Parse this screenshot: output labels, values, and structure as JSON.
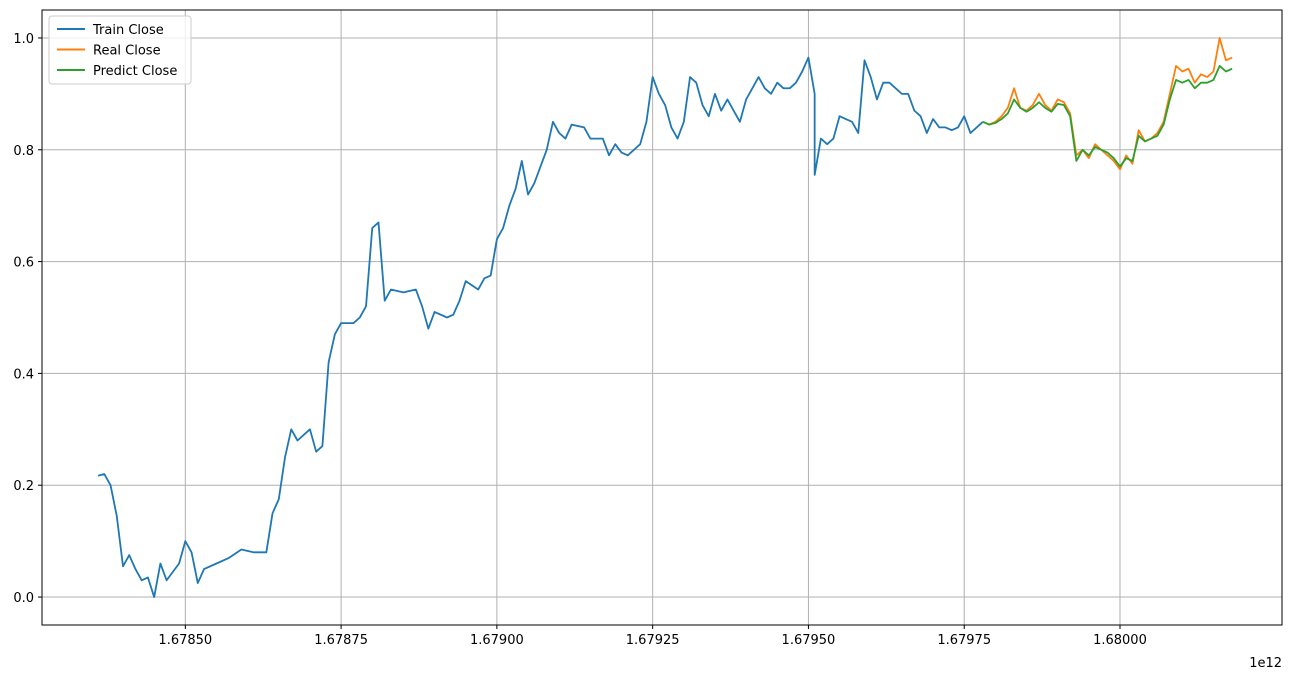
{
  "chart_data": {
    "type": "line",
    "title": "",
    "xlabel": "",
    "ylabel": "",
    "x_offset_label": "1e12",
    "xlim": [
      1.67827,
      1.68026
    ],
    "ylim": [
      -0.05,
      1.05
    ],
    "x_ticks": [
      1.6785,
      1.67875,
      1.679,
      1.67925,
      1.6795,
      1.67975,
      1.68
    ],
    "x_tick_labels": [
      "1.67850",
      "1.67875",
      "1.67900",
      "1.67925",
      "1.67950",
      "1.67975",
      "1.68000"
    ],
    "y_ticks": [
      0.0,
      0.2,
      0.4,
      0.6,
      0.8,
      1.0
    ],
    "y_tick_labels": [
      "0.0",
      "0.2",
      "0.4",
      "0.6",
      "0.8",
      "1.0"
    ],
    "grid": true,
    "legend_position": "top-left",
    "series": [
      {
        "name": "Train Close",
        "color": "#1f77b4",
        "points": [
          [
            1.67836,
            0.217
          ],
          [
            1.67837,
            0.22
          ],
          [
            1.67838,
            0.2
          ],
          [
            1.67839,
            0.145
          ],
          [
            1.6784,
            0.055
          ],
          [
            1.67841,
            0.075
          ],
          [
            1.67842,
            0.05
          ],
          [
            1.67843,
            0.03
          ],
          [
            1.67844,
            0.035
          ],
          [
            1.67845,
            0.0
          ],
          [
            1.67846,
            0.06
          ],
          [
            1.67847,
            0.03
          ],
          [
            1.67848,
            0.045
          ],
          [
            1.67849,
            0.06
          ],
          [
            1.6785,
            0.1
          ],
          [
            1.67851,
            0.08
          ],
          [
            1.67852,
            0.025
          ],
          [
            1.67853,
            0.05
          ],
          [
            1.67855,
            0.06
          ],
          [
            1.67857,
            0.07
          ],
          [
            1.67859,
            0.085
          ],
          [
            1.67861,
            0.08
          ],
          [
            1.67863,
            0.08
          ],
          [
            1.67864,
            0.15
          ],
          [
            1.67865,
            0.175
          ],
          [
            1.67866,
            0.25
          ],
          [
            1.67867,
            0.3
          ],
          [
            1.67868,
            0.28
          ],
          [
            1.6787,
            0.3
          ],
          [
            1.67871,
            0.26
          ],
          [
            1.67872,
            0.27
          ],
          [
            1.67873,
            0.42
          ],
          [
            1.67874,
            0.47
          ],
          [
            1.67875,
            0.49
          ],
          [
            1.67877,
            0.49
          ],
          [
            1.67878,
            0.5
          ],
          [
            1.67879,
            0.52
          ],
          [
            1.6788,
            0.66
          ],
          [
            1.67881,
            0.67
          ],
          [
            1.67882,
            0.53
          ],
          [
            1.67883,
            0.55
          ],
          [
            1.67885,
            0.545
          ],
          [
            1.67887,
            0.55
          ],
          [
            1.67888,
            0.52
          ],
          [
            1.67889,
            0.48
          ],
          [
            1.6789,
            0.51
          ],
          [
            1.67892,
            0.5
          ],
          [
            1.67893,
            0.505
          ],
          [
            1.67894,
            0.53
          ],
          [
            1.67895,
            0.565
          ],
          [
            1.67897,
            0.55
          ],
          [
            1.67898,
            0.57
          ],
          [
            1.67899,
            0.575
          ],
          [
            1.679,
            0.64
          ],
          [
            1.67901,
            0.66
          ],
          [
            1.67902,
            0.7
          ],
          [
            1.67903,
            0.73
          ],
          [
            1.67904,
            0.78
          ],
          [
            1.67905,
            0.72
          ],
          [
            1.67906,
            0.74
          ],
          [
            1.67907,
            0.77
          ],
          [
            1.67908,
            0.8
          ],
          [
            1.67909,
            0.85
          ],
          [
            1.6791,
            0.83
          ],
          [
            1.67911,
            0.82
          ],
          [
            1.67912,
            0.845
          ],
          [
            1.67914,
            0.84
          ],
          [
            1.67915,
            0.82
          ],
          [
            1.67917,
            0.82
          ],
          [
            1.67918,
            0.79
          ],
          [
            1.67919,
            0.81
          ],
          [
            1.6792,
            0.795
          ],
          [
            1.67921,
            0.79
          ],
          [
            1.67922,
            0.8
          ],
          [
            1.67923,
            0.81
          ],
          [
            1.67924,
            0.85
          ],
          [
            1.67925,
            0.93
          ],
          [
            1.67926,
            0.9
          ],
          [
            1.67927,
            0.88
          ],
          [
            1.67928,
            0.84
          ],
          [
            1.67929,
            0.82
          ],
          [
            1.6793,
            0.85
          ],
          [
            1.67931,
            0.93
          ],
          [
            1.67932,
            0.92
          ],
          [
            1.67933,
            0.88
          ],
          [
            1.67934,
            0.86
          ],
          [
            1.67935,
            0.9
          ],
          [
            1.67936,
            0.87
          ],
          [
            1.67937,
            0.89
          ],
          [
            1.67938,
            0.87
          ],
          [
            1.67939,
            0.85
          ],
          [
            1.6794,
            0.89
          ],
          [
            1.67941,
            0.91
          ],
          [
            1.67942,
            0.93
          ],
          [
            1.67943,
            0.91
          ],
          [
            1.67944,
            0.9
          ],
          [
            1.67945,
            0.92
          ],
          [
            1.67946,
            0.91
          ],
          [
            1.67947,
            0.91
          ],
          [
            1.67948,
            0.92
          ],
          [
            1.67949,
            0.94
          ],
          [
            1.6795,
            0.965
          ],
          [
            1.67951,
            0.9
          ],
          [
            1.67951,
            0.755
          ],
          [
            1.67952,
            0.82
          ],
          [
            1.67953,
            0.81
          ],
          [
            1.67954,
            0.82
          ],
          [
            1.67955,
            0.86
          ],
          [
            1.67956,
            0.855
          ],
          [
            1.67957,
            0.85
          ],
          [
            1.67958,
            0.83
          ],
          [
            1.67959,
            0.96
          ],
          [
            1.6796,
            0.93
          ],
          [
            1.67961,
            0.89
          ],
          [
            1.67962,
            0.92
          ],
          [
            1.67963,
            0.92
          ],
          [
            1.67964,
            0.91
          ],
          [
            1.67965,
            0.9
          ],
          [
            1.67966,
            0.9
          ],
          [
            1.67967,
            0.87
          ],
          [
            1.67968,
            0.86
          ],
          [
            1.67969,
            0.83
          ],
          [
            1.6797,
            0.855
          ],
          [
            1.67971,
            0.84
          ],
          [
            1.67972,
            0.84
          ],
          [
            1.67973,
            0.835
          ],
          [
            1.67974,
            0.84
          ],
          [
            1.67975,
            0.86
          ],
          [
            1.67976,
            0.83
          ],
          [
            1.67977,
            0.84
          ],
          [
            1.67978,
            0.85
          ]
        ]
      },
      {
        "name": "Real Close",
        "color": "#ff7f0e",
        "points": [
          [
            1.67978,
            0.85
          ],
          [
            1.67979,
            0.845
          ],
          [
            1.6798,
            0.85
          ],
          [
            1.67981,
            0.86
          ],
          [
            1.67982,
            0.875
          ],
          [
            1.67983,
            0.91
          ],
          [
            1.67984,
            0.875
          ],
          [
            1.67985,
            0.87
          ],
          [
            1.67986,
            0.88
          ],
          [
            1.67987,
            0.9
          ],
          [
            1.67988,
            0.88
          ],
          [
            1.67989,
            0.87
          ],
          [
            1.6799,
            0.89
          ],
          [
            1.67991,
            0.885
          ],
          [
            1.67992,
            0.865
          ],
          [
            1.67993,
            0.79
          ],
          [
            1.67994,
            0.8
          ],
          [
            1.67995,
            0.785
          ],
          [
            1.67996,
            0.81
          ],
          [
            1.67997,
            0.8
          ],
          [
            1.67998,
            0.79
          ],
          [
            1.67999,
            0.78
          ],
          [
            1.68,
            0.765
          ],
          [
            1.68001,
            0.79
          ],
          [
            1.68002,
            0.775
          ],
          [
            1.68003,
            0.835
          ],
          [
            1.68004,
            0.815
          ],
          [
            1.68005,
            0.82
          ],
          [
            1.68006,
            0.83
          ],
          [
            1.68007,
            0.85
          ],
          [
            1.68008,
            0.9
          ],
          [
            1.68009,
            0.95
          ],
          [
            1.6801,
            0.94
          ],
          [
            1.68011,
            0.945
          ],
          [
            1.68012,
            0.92
          ],
          [
            1.68013,
            0.935
          ],
          [
            1.68014,
            0.93
          ],
          [
            1.68015,
            0.94
          ],
          [
            1.68016,
            1.0
          ],
          [
            1.68017,
            0.96
          ],
          [
            1.68018,
            0.965
          ]
        ]
      },
      {
        "name": "Predict Close",
        "color": "#2ca02c",
        "points": [
          [
            1.67978,
            0.85
          ],
          [
            1.67979,
            0.845
          ],
          [
            1.6798,
            0.848
          ],
          [
            1.67981,
            0.855
          ],
          [
            1.67982,
            0.865
          ],
          [
            1.67983,
            0.89
          ],
          [
            1.67984,
            0.875
          ],
          [
            1.67985,
            0.868
          ],
          [
            1.67986,
            0.875
          ],
          [
            1.67987,
            0.885
          ],
          [
            1.67988,
            0.875
          ],
          [
            1.67989,
            0.868
          ],
          [
            1.6799,
            0.882
          ],
          [
            1.67991,
            0.88
          ],
          [
            1.67992,
            0.86
          ],
          [
            1.67993,
            0.78
          ],
          [
            1.67994,
            0.8
          ],
          [
            1.67995,
            0.79
          ],
          [
            1.67996,
            0.805
          ],
          [
            1.67997,
            0.8
          ],
          [
            1.67998,
            0.795
          ],
          [
            1.67999,
            0.785
          ],
          [
            1.68,
            0.77
          ],
          [
            1.68001,
            0.785
          ],
          [
            1.68002,
            0.78
          ],
          [
            1.68003,
            0.825
          ],
          [
            1.68004,
            0.815
          ],
          [
            1.68005,
            0.82
          ],
          [
            1.68006,
            0.825
          ],
          [
            1.68007,
            0.845
          ],
          [
            1.68008,
            0.89
          ],
          [
            1.68009,
            0.925
          ],
          [
            1.6801,
            0.92
          ],
          [
            1.68011,
            0.925
          ],
          [
            1.68012,
            0.91
          ],
          [
            1.68013,
            0.92
          ],
          [
            1.68014,
            0.92
          ],
          [
            1.68015,
            0.925
          ],
          [
            1.68016,
            0.95
          ],
          [
            1.68017,
            0.94
          ],
          [
            1.68018,
            0.945
          ]
        ]
      }
    ]
  }
}
